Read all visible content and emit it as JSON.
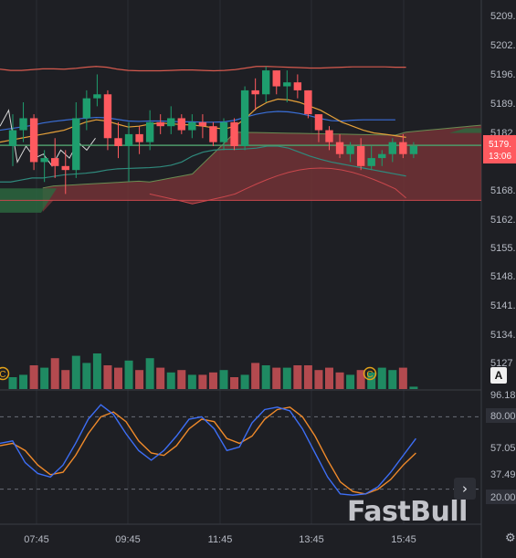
{
  "chart_data": {
    "type": "candlestick",
    "y_axis": {
      "ticks": [
        "5209.",
        "5202.",
        "5196.",
        "5189.",
        "5182.",
        "5175",
        "5168.",
        "5162.",
        "5155.",
        "5148.",
        "5141.",
        "5134.",
        "5127"
      ],
      "range": [
        5124,
        5212
      ]
    },
    "x_axis": {
      "ticks": [
        "07:45",
        "09:45",
        "11:45",
        "13:45",
        "15:45"
      ]
    },
    "last_price": {
      "label": "5179.",
      "timer": "13:06",
      "value": 5179.2
    },
    "candles": [
      {
        "o": 5179,
        "h": 5187,
        "l": 5174,
        "c": 5183
      },
      {
        "o": 5183,
        "h": 5190,
        "l": 5180,
        "c": 5186
      },
      {
        "o": 5186,
        "h": 5187,
        "l": 5173,
        "c": 5175
      },
      {
        "o": 5175,
        "h": 5178,
        "l": 5170,
        "c": 5176
      },
      {
        "o": 5176,
        "h": 5181,
        "l": 5171,
        "c": 5174
      },
      {
        "o": 5174,
        "h": 5178,
        "l": 5167,
        "c": 5173
      },
      {
        "o": 5173,
        "h": 5190,
        "l": 5171,
        "c": 5186
      },
      {
        "o": 5186,
        "h": 5193,
        "l": 5183,
        "c": 5191
      },
      {
        "o": 5191,
        "h": 5197,
        "l": 5189,
        "c": 5192
      },
      {
        "o": 5192,
        "h": 5193,
        "l": 5178,
        "c": 5181
      },
      {
        "o": 5181,
        "h": 5185,
        "l": 5176,
        "c": 5179
      },
      {
        "o": 5179,
        "h": 5185,
        "l": 5170,
        "c": 5182
      },
      {
        "o": 5182,
        "h": 5184,
        "l": 5177,
        "c": 5180
      },
      {
        "o": 5180,
        "h": 5188,
        "l": 5178,
        "c": 5185
      },
      {
        "o": 5185,
        "h": 5187,
        "l": 5182,
        "c": 5184
      },
      {
        "o": 5184,
        "h": 5189,
        "l": 5182,
        "c": 5186
      },
      {
        "o": 5186,
        "h": 5187,
        "l": 5182,
        "c": 5183
      },
      {
        "o": 5183,
        "h": 5187,
        "l": 5181,
        "c": 5185
      },
      {
        "o": 5185,
        "h": 5187,
        "l": 5181,
        "c": 5184
      },
      {
        "o": 5184,
        "h": 5185,
        "l": 5179,
        "c": 5180
      },
      {
        "o": 5180,
        "h": 5186,
        "l": 5178,
        "c": 5185
      },
      {
        "o": 5185,
        "h": 5186,
        "l": 5178,
        "c": 5179
      },
      {
        "o": 5179,
        "h": 5194,
        "l": 5178,
        "c": 5193
      },
      {
        "o": 5193,
        "h": 5196,
        "l": 5188,
        "c": 5192
      },
      {
        "o": 5192,
        "h": 5199,
        "l": 5190,
        "c": 5198
      },
      {
        "o": 5198,
        "h": 5198,
        "l": 5192,
        "c": 5194
      },
      {
        "o": 5194,
        "h": 5198,
        "l": 5190,
        "c": 5195
      },
      {
        "o": 5195,
        "h": 5197,
        "l": 5191,
        "c": 5193
      },
      {
        "o": 5193,
        "h": 5193,
        "l": 5186,
        "c": 5187
      },
      {
        "o": 5187,
        "h": 5187,
        "l": 5180,
        "c": 5183
      },
      {
        "o": 5183,
        "h": 5184,
        "l": 5178,
        "c": 5180
      },
      {
        "o": 5180,
        "h": 5182,
        "l": 5176,
        "c": 5177
      },
      {
        "o": 5177,
        "h": 5180,
        "l": 5175,
        "c": 5179
      },
      {
        "o": 5179,
        "h": 5181,
        "l": 5173,
        "c": 5174
      },
      {
        "o": 5174,
        "h": 5179,
        "l": 5173,
        "c": 5176
      },
      {
        "o": 5176,
        "h": 5178,
        "l": 5174,
        "c": 5177
      },
      {
        "o": 5177,
        "h": 5181,
        "l": 5175,
        "c": 5180
      },
      {
        "o": 5180,
        "h": 5182,
        "l": 5176,
        "c": 5177
      },
      {
        "o": 5177,
        "h": 5180,
        "l": 5176,
        "c": 5179
      }
    ],
    "volume": [
      5,
      6,
      10,
      9,
      13,
      8,
      14,
      11,
      15,
      10,
      9,
      12,
      8,
      13,
      9,
      7,
      8,
      6,
      6,
      7,
      8,
      5,
      6,
      11,
      10,
      9,
      9,
      10,
      10,
      8,
      9,
      7,
      6,
      8,
      7,
      9,
      8,
      9,
      1
    ],
    "stochastic": {
      "y_ticks": [
        "96.18",
        "80.00",
        "57.05",
        "37.49",
        "20.00"
      ],
      "y_range": [
        0,
        100
      ],
      "levels": [
        80,
        20
      ],
      "k_line": [
        58,
        60,
        42,
        33,
        30,
        40,
        58,
        78,
        90,
        82,
        66,
        52,
        44,
        52,
        64,
        78,
        80,
        70,
        52,
        55,
        75,
        86,
        88,
        85,
        70,
        50,
        30,
        16,
        15,
        16,
        22,
        34,
        48,
        62
      ],
      "d_line": [
        56,
        58,
        52,
        40,
        32,
        34,
        48,
        66,
        80,
        84,
        76,
        60,
        50,
        48,
        56,
        70,
        78,
        76,
        62,
        58,
        64,
        78,
        86,
        88,
        80,
        64,
        44,
        26,
        18,
        16,
        20,
        28,
        40,
        50
      ]
    },
    "colors": {
      "up": "#1e9e6e",
      "down": "#ff5a5f",
      "vol_up": "#1f8a62",
      "vol_down": "#b34a4f",
      "cloud_bear": "#7d3538",
      "cloud_bull": "#2c6a40",
      "bb_outer": "#d65a4e",
      "bb_mid": "#3a6fd8",
      "fast_ma": "#e6a13a",
      "stoch_k": "#3d6ef5",
      "stoch_d": "#f08a2a"
    }
  },
  "ui": {
    "watermark": "FastBull",
    "nav_next_icon": "chevron-right-icon",
    "auto_button": "A",
    "settings_icon": "gear-icon",
    "marker_glyph": "C"
  }
}
